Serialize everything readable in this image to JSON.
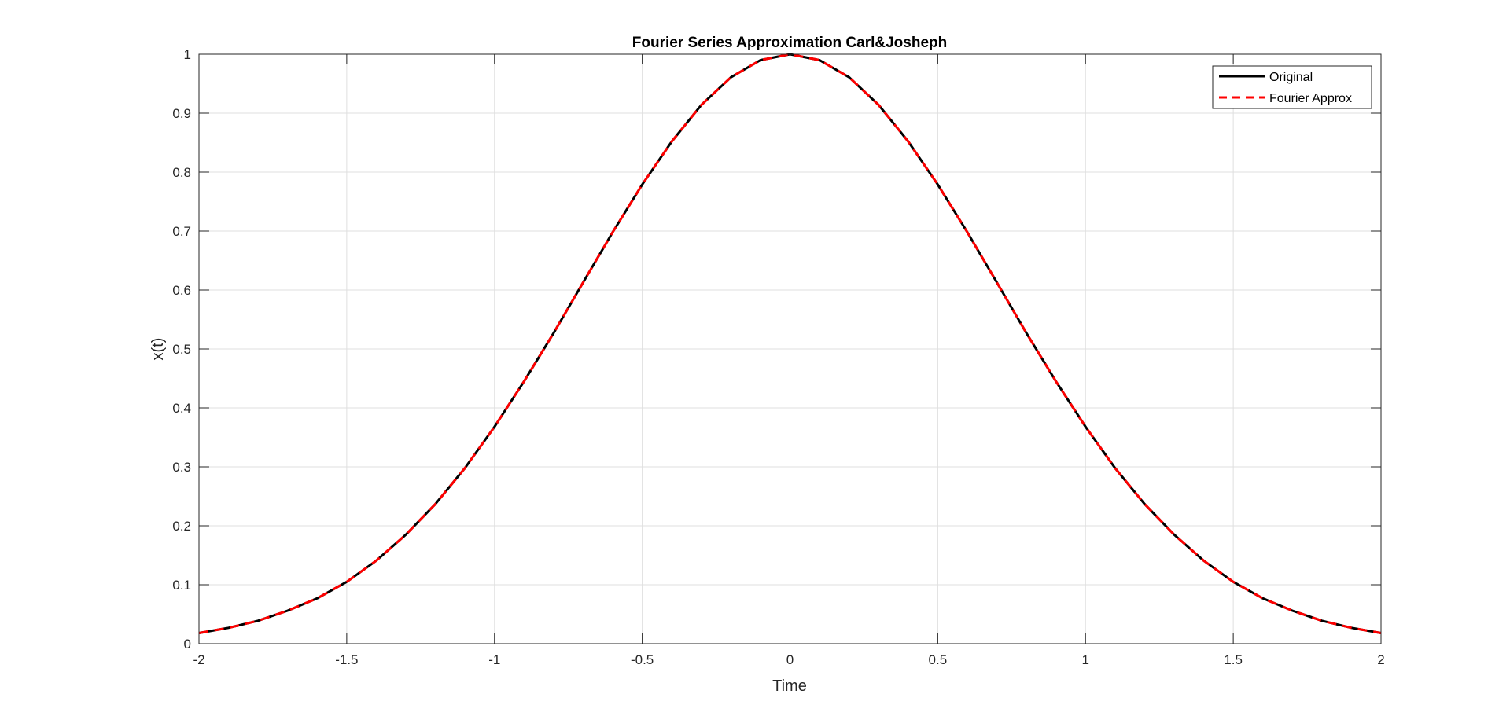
{
  "chart_data": {
    "type": "line",
    "title": "Fourier Series Approximation Carl&Josheph",
    "xlabel": "Time",
    "ylabel": "x(t)",
    "xlim": [
      -2,
      2
    ],
    "ylim": [
      0,
      1
    ],
    "grid": true,
    "legend_position": "top-right",
    "xticks": [
      -2,
      -1.5,
      -1,
      -0.5,
      0,
      0.5,
      1,
      1.5,
      2
    ],
    "xtick_labels": [
      "-2",
      "-1.5",
      "-1",
      "-0.5",
      "0",
      "0.5",
      "1",
      "1.5",
      "2"
    ],
    "yticks": [
      0,
      0.1,
      0.2,
      0.3,
      0.4,
      0.5,
      0.6,
      0.7,
      0.8,
      0.9,
      1
    ],
    "ytick_labels": [
      "0",
      "0.1",
      "0.2",
      "0.3",
      "0.4",
      "0.5",
      "0.6",
      "0.7",
      "0.8",
      "0.9",
      "1"
    ],
    "x": [
      -2,
      -1.9,
      -1.8,
      -1.7,
      -1.6,
      -1.5,
      -1.4,
      -1.3,
      -1.2,
      -1.1,
      -1.0,
      -0.9,
      -0.8,
      -0.7,
      -0.6,
      -0.5,
      -0.4,
      -0.3,
      -0.2,
      -0.1,
      0,
      0.1,
      0.2,
      0.3,
      0.4,
      0.5,
      0.6,
      0.7,
      0.8,
      0.9,
      1.0,
      1.1,
      1.2,
      1.3,
      1.4,
      1.5,
      1.6,
      1.7,
      1.8,
      1.9,
      2
    ],
    "series": [
      {
        "name": "Original",
        "color": "#000000",
        "style": "solid",
        "values": [
          0.018,
          0.027,
          0.039,
          0.056,
          0.077,
          0.105,
          0.141,
          0.185,
          0.237,
          0.298,
          0.368,
          0.445,
          0.527,
          0.613,
          0.698,
          0.779,
          0.852,
          0.914,
          0.961,
          0.99,
          1.0,
          0.99,
          0.961,
          0.914,
          0.852,
          0.779,
          0.698,
          0.613,
          0.527,
          0.445,
          0.368,
          0.298,
          0.237,
          0.185,
          0.141,
          0.105,
          0.077,
          0.056,
          0.039,
          0.027,
          0.018
        ]
      },
      {
        "name": "Fourier Approx",
        "color": "#ff0000",
        "style": "dashed",
        "values": [
          0.018,
          0.027,
          0.039,
          0.056,
          0.077,
          0.105,
          0.141,
          0.185,
          0.237,
          0.298,
          0.368,
          0.445,
          0.527,
          0.613,
          0.698,
          0.779,
          0.852,
          0.914,
          0.961,
          0.99,
          1.0,
          0.99,
          0.961,
          0.914,
          0.852,
          0.779,
          0.698,
          0.613,
          0.527,
          0.445,
          0.368,
          0.298,
          0.237,
          0.185,
          0.141,
          0.105,
          0.077,
          0.056,
          0.039,
          0.027,
          0.018
        ]
      }
    ]
  }
}
